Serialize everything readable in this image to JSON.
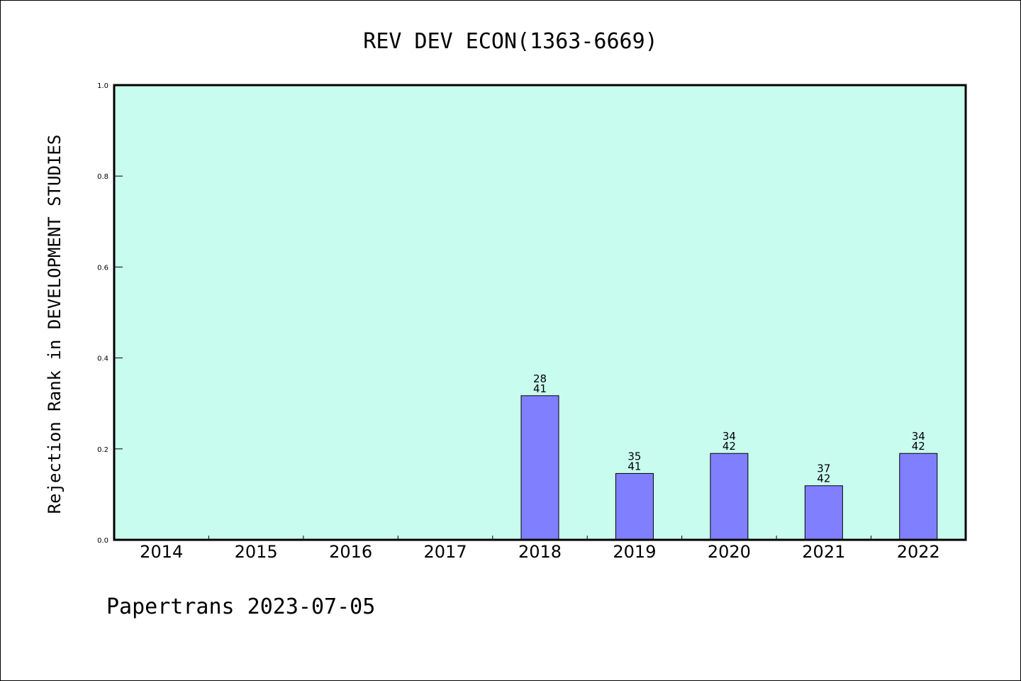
{
  "chart_data": {
    "type": "bar",
    "title": "REV DEV ECON(1363-6669)",
    "ylabel": "Rejection Rank in DEVELOPMENT STUDIES",
    "xlabel": "",
    "categories": [
      "2014",
      "2015",
      "2016",
      "2017",
      "2018",
      "2019",
      "2020",
      "2021",
      "2022"
    ],
    "values": [
      null,
      null,
      null,
      null,
      0.317,
      0.146,
      0.19,
      0.119,
      0.19
    ],
    "labels": [
      null,
      null,
      null,
      null,
      [
        "28",
        "41"
      ],
      [
        "35",
        "41"
      ],
      [
        "34",
        "42"
      ],
      [
        "37",
        "42"
      ],
      [
        "34",
        "42"
      ]
    ],
    "ylim": [
      0.0,
      1.0
    ],
    "yticks": [
      "0.0",
      "0.2",
      "0.4",
      "0.6",
      "0.8",
      "1.0"
    ],
    "grid": false,
    "legend": "none",
    "colors": {
      "plot_background": "#c8fcee",
      "bar": "#8080ff",
      "bar_edge": "#000000"
    }
  },
  "footer": "Papertrans 2023-07-05"
}
